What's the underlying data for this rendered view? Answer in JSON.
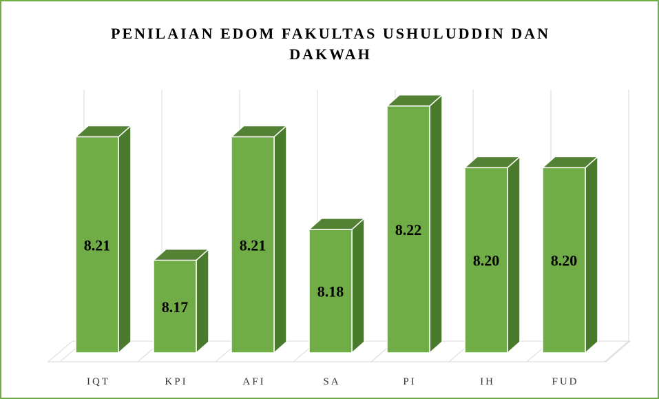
{
  "chart_data": {
    "type": "bar3d",
    "title": "PENILAIAN EDOM FAKULTAS USHULUDDIN DAN DAKWAH",
    "categories": [
      "IQT",
      "KPI",
      "AFI",
      "SA",
      "PI",
      "IH",
      "FUD"
    ],
    "values": [
      8.21,
      8.17,
      8.21,
      8.18,
      8.22,
      8.2,
      8.2
    ],
    "value_labels": [
      "8.21",
      "8.17",
      "8.21",
      "8.18",
      "8.22",
      "8.20",
      "8.20"
    ],
    "color": "#70ad47",
    "ylim": [
      8.14,
      8.23
    ],
    "grid": true
  }
}
